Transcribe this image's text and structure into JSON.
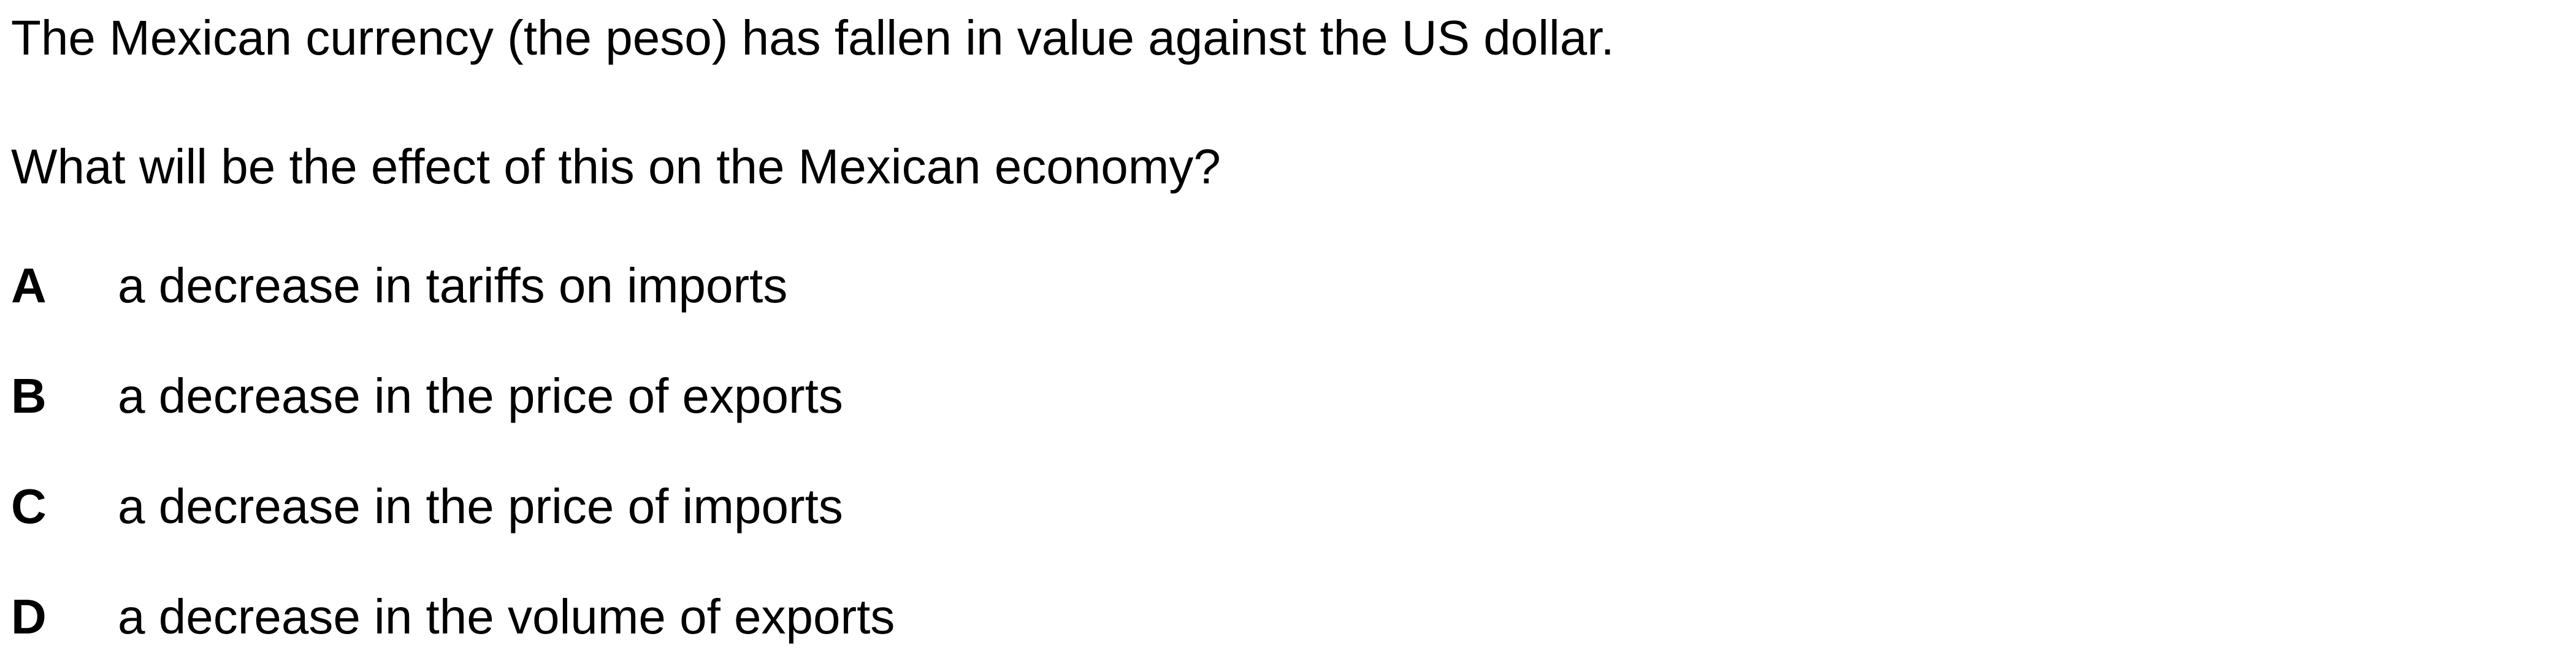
{
  "question": {
    "stem": "The Mexican currency (the peso) has fallen in value against the US dollar.",
    "prompt": "What will be the effect of this on the Mexican economy?"
  },
  "options": [
    {
      "letter": "A",
      "text": "a decrease in tariffs on imports"
    },
    {
      "letter": "B",
      "text": "a decrease in the price of exports"
    },
    {
      "letter": "C",
      "text": "a decrease in the price of imports"
    },
    {
      "letter": "D",
      "text": "a decrease in the volume of exports"
    }
  ]
}
